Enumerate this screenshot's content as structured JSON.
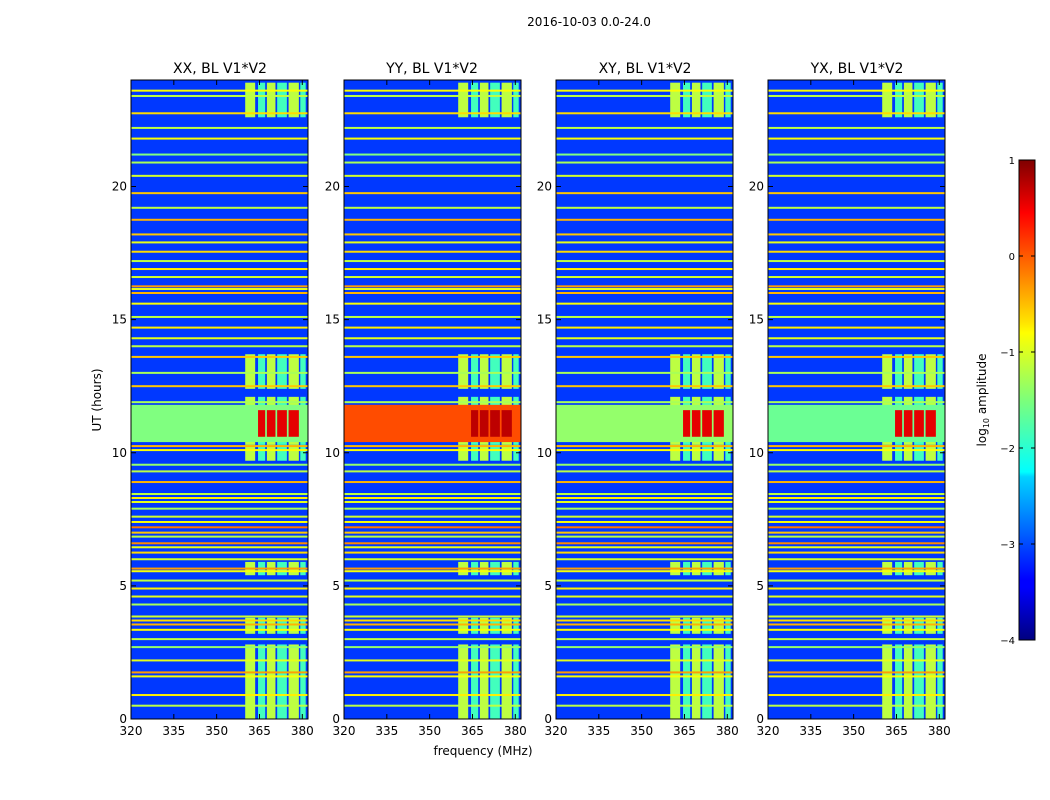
{
  "suptitle": "2016-10-03 0.0-24.0",
  "chart_data": {
    "type": "heatmap",
    "shared": {
      "xlabel": "frequency (MHz)",
      "ylabel": "UT (hours)",
      "xlim": [
        320,
        382
      ],
      "ylim": [
        0,
        24
      ],
      "xticks": [
        320,
        335,
        350,
        365,
        380
      ],
      "xtick_labels": [
        "320",
        "335",
        "350",
        "365",
        "380"
      ],
      "yticks": [
        0,
        5,
        10,
        15,
        20
      ],
      "ytick_labels": [
        "0",
        "5",
        "10",
        "15",
        "20"
      ],
      "background_log_amplitude": -3.1,
      "rfi_bands_mhz": [
        [
          360,
          363.5
        ],
        [
          364.5,
          367
        ],
        [
          367.6,
          370.6
        ],
        [
          371.2,
          374.6
        ],
        [
          375.2,
          378.8
        ],
        [
          379.3,
          381.2
        ]
      ],
      "rfi_active_hours": [
        [
          0,
          2.8
        ],
        [
          3.2,
          3.8
        ],
        [
          5.4,
          5.9
        ],
        [
          9.7,
          10.3
        ],
        [
          10.3,
          12.1
        ],
        [
          12.4,
          13.7
        ],
        [
          22.6,
          23.9
        ]
      ],
      "horizontal_lines": [
        {
          "ut": 0.5,
          "log_amp": -1.2
        },
        {
          "ut": 0.9,
          "log_amp": -0.8
        },
        {
          "ut": 1.6,
          "log_amp": -0.9
        },
        {
          "ut": 1.75,
          "log_amp": -0.4
        },
        {
          "ut": 2.2,
          "log_amp": -1.0
        },
        {
          "ut": 2.7,
          "log_amp": -1.4
        },
        {
          "ut": 3.0,
          "log_amp": -1.2
        },
        {
          "ut": 3.35,
          "log_amp": -0.9
        },
        {
          "ut": 3.55,
          "log_amp": -0.5
        },
        {
          "ut": 3.7,
          "log_amp": -0.7
        },
        {
          "ut": 3.85,
          "log_amp": -1.1
        },
        {
          "ut": 4.3,
          "log_amp": -1.3
        },
        {
          "ut": 4.6,
          "log_amp": -1.0
        },
        {
          "ut": 4.9,
          "log_amp": -0.8
        },
        {
          "ut": 5.2,
          "log_amp": -1.2
        },
        {
          "ut": 5.55,
          "log_amp": -0.9
        },
        {
          "ut": 5.65,
          "log_amp": -0.4
        },
        {
          "ut": 6.0,
          "log_amp": -1.1
        },
        {
          "ut": 6.25,
          "log_amp": -0.7
        },
        {
          "ut": 6.45,
          "log_amp": -1.0
        },
        {
          "ut": 6.6,
          "log_amp": -0.3
        },
        {
          "ut": 6.85,
          "log_amp": -1.2
        },
        {
          "ut": 7.0,
          "log_amp": -0.6
        },
        {
          "ut": 7.2,
          "log_amp": -0.2
        },
        {
          "ut": 7.4,
          "log_amp": -0.9
        },
        {
          "ut": 7.6,
          "log_amp": -1.1
        },
        {
          "ut": 7.9,
          "log_amp": -1.3
        },
        {
          "ut": 8.15,
          "log_amp": -1.0
        },
        {
          "ut": 8.3,
          "log_amp": -0.8
        },
        {
          "ut": 8.45,
          "log_amp": -1.2
        },
        {
          "ut": 8.9,
          "log_amp": -0.5
        },
        {
          "ut": 9.3,
          "log_amp": -1.2
        },
        {
          "ut": 9.55,
          "log_amp": -1.4
        },
        {
          "ut": 10.1,
          "log_amp": -0.9
        },
        {
          "ut": 10.25,
          "log_amp": -0.5
        },
        {
          "ut": 11.9,
          "log_amp": -1.3
        },
        {
          "ut": 12.5,
          "log_amp": -0.6
        },
        {
          "ut": 13.0,
          "log_amp": -1.3
        },
        {
          "ut": 13.6,
          "log_amp": -0.6
        },
        {
          "ut": 14.0,
          "log_amp": -1.2
        },
        {
          "ut": 14.3,
          "log_amp": -1.0
        },
        {
          "ut": 14.7,
          "log_amp": -0.8
        },
        {
          "ut": 15.1,
          "log_amp": -1.2
        },
        {
          "ut": 15.6,
          "log_amp": -0.9
        },
        {
          "ut": 16.0,
          "log_amp": -0.5
        },
        {
          "ut": 16.15,
          "log_amp": -1.0
        },
        {
          "ut": 16.25,
          "log_amp": -0.4
        },
        {
          "ut": 16.6,
          "log_amp": -1.1
        },
        {
          "ut": 16.9,
          "log_amp": -0.8
        },
        {
          "ut": 17.2,
          "log_amp": -1.2
        },
        {
          "ut": 17.55,
          "log_amp": -0.7
        },
        {
          "ut": 17.9,
          "log_amp": -1.0
        },
        {
          "ut": 18.2,
          "log_amp": -0.6
        },
        {
          "ut": 18.75,
          "log_amp": -0.5
        },
        {
          "ut": 19.2,
          "log_amp": -1.2
        },
        {
          "ut": 19.75,
          "log_amp": -0.6
        },
        {
          "ut": 20.4,
          "log_amp": -1.1
        },
        {
          "ut": 20.9,
          "log_amp": -1.3
        },
        {
          "ut": 21.2,
          "log_amp": -1.5
        },
        {
          "ut": 21.8,
          "log_amp": -0.9
        },
        {
          "ut": 22.2,
          "log_amp": -1.2
        },
        {
          "ut": 22.75,
          "log_amp": -0.7
        },
        {
          "ut": 23.4,
          "log_amp": -1.2
        },
        {
          "ut": 23.6,
          "log_amp": -0.9
        }
      ]
    },
    "panels": [
      {
        "title": "XX, BL V1*V2",
        "event": {
          "ut_range": [
            10.4,
            11.8
          ],
          "freq_range": [
            320,
            382
          ],
          "peak_log_amp": 0.5,
          "broadband_log_amp": -1.5
        }
      },
      {
        "title": "YY, BL V1*V2",
        "event": {
          "ut_range": [
            10.4,
            11.8
          ],
          "freq_range": [
            320,
            382
          ],
          "peak_log_amp": 0.7,
          "broadband_log_amp": 0.0
        }
      },
      {
        "title": "XY, BL V1*V2",
        "event": {
          "ut_range": [
            10.4,
            11.8
          ],
          "freq_range": [
            320,
            382
          ],
          "peak_log_amp": 0.5,
          "broadband_log_amp": -1.4
        }
      },
      {
        "title": "YX, BL V1*V2",
        "event": {
          "ut_range": [
            10.4,
            11.8
          ],
          "freq_range": [
            320,
            382
          ],
          "peak_log_amp": 0.5,
          "broadband_log_amp": -1.6
        }
      }
    ],
    "colorbar": {
      "label_prefix": "log",
      "label_subscript": "10",
      "label_suffix": " amplitude",
      "range": [
        -4,
        1
      ],
      "ticks": [
        1,
        0,
        -1,
        -2,
        -3,
        -4
      ],
      "tick_labels": [
        "1",
        "0",
        "−1",
        "−2",
        "−3",
        "−4"
      ],
      "colormap": "jet"
    }
  }
}
